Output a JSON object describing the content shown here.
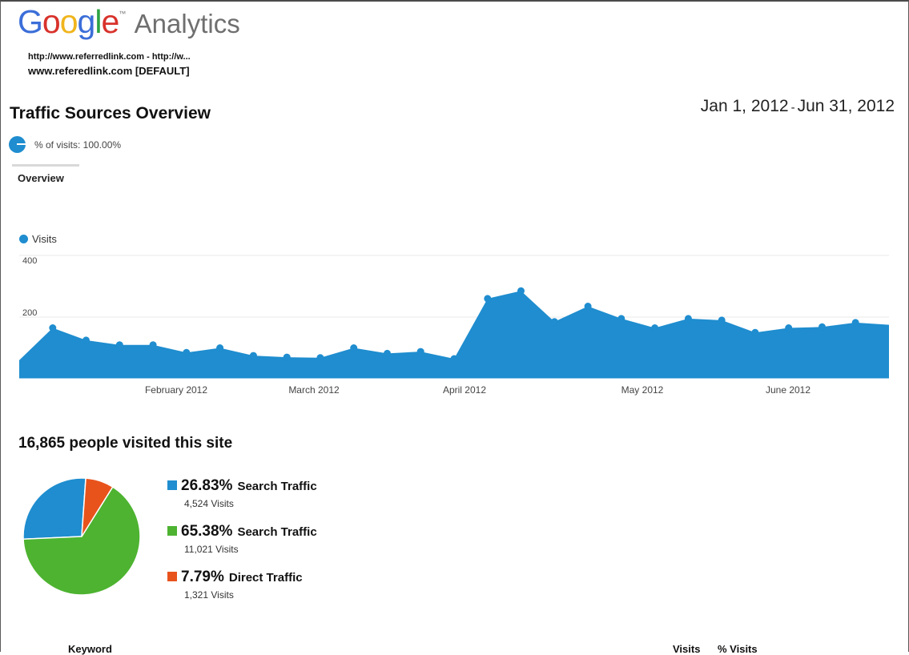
{
  "header": {
    "logo": {
      "google_letters": [
        "G",
        "o",
        "o",
        "g",
        "l",
        "e"
      ],
      "trademark": "™",
      "product": "Analytics"
    },
    "account_path": "http://www.referredlink.com - http://w...",
    "profile": "www.referedlink.com [DEFAULT]"
  },
  "page": {
    "title": "Traffic Sources Overview",
    "date_start": "Jan 1, 2012",
    "date_separator": "-",
    "date_end": "Jun 31, 2012"
  },
  "segment": {
    "label": "% of visits: 100.00%",
    "icon": "pie-segment-icon"
  },
  "tabs": {
    "overview": "Overview"
  },
  "chart_data": [
    {
      "type": "area",
      "series": [
        {
          "name": "Visits",
          "color": "#1f8dcf",
          "values": [
            60,
            165,
            125,
            110,
            110,
            85,
            100,
            75,
            70,
            68,
            100,
            82,
            88,
            65,
            260,
            285,
            185,
            235,
            195,
            165,
            195,
            190,
            150,
            165,
            168,
            182,
            175
          ]
        }
      ],
      "ylim": [
        0,
        400
      ],
      "y_ticks": [
        "400",
        "200"
      ],
      "x_tick_labels": [
        "February 2012",
        "March 2012",
        "April 2012",
        "May 2012",
        "June 2012"
      ],
      "legend": "top-left",
      "grid": true
    },
    {
      "type": "pie",
      "slices": [
        {
          "percent": 26.83,
          "color": "#1f8dcf"
        },
        {
          "percent": 65.38,
          "color": "#4db330"
        },
        {
          "percent": 7.79,
          "color": "#e8531c"
        }
      ]
    }
  ],
  "summary": {
    "heading": "16,865 people visited this site",
    "sources": [
      {
        "pct": "26.83%",
        "label": "Search Traffic",
        "visits": "4,524 Visits",
        "color": "#1f8dcf"
      },
      {
        "pct": "65.38%",
        "label": "Search Traffic",
        "visits": "11,021 Visits",
        "color": "#4db330"
      },
      {
        "pct": "7.79%",
        "label": "Direct Traffic",
        "visits": "1,321 Visits",
        "color": "#e8531c"
      }
    ]
  },
  "table": {
    "columns": [
      "Keyword",
      "Visits",
      "% Visits"
    ]
  }
}
